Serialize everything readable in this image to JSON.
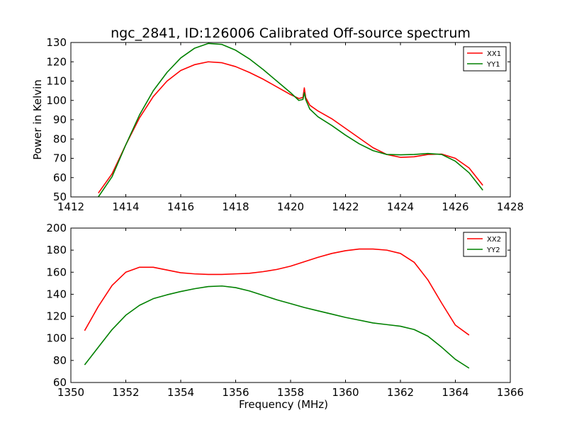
{
  "figure": {
    "title": "ngc_2841, ID:126006 Calibrated Off-source spectrum"
  },
  "chart_data": [
    {
      "type": "line",
      "ylabel": "Power in Kelvin",
      "xlabel": "",
      "xlim": [
        1412,
        1428
      ],
      "ylim": [
        50,
        130
      ],
      "xticks": [
        1412,
        1414,
        1416,
        1418,
        1420,
        1422,
        1424,
        1426,
        1428
      ],
      "yticks": [
        50,
        60,
        70,
        80,
        90,
        100,
        110,
        120,
        130
      ],
      "grid": false,
      "legend": "top-right",
      "series": [
        {
          "name": "XX1",
          "color": "#ff0000",
          "x": [
            1413.0,
            1413.5,
            1414.0,
            1414.5,
            1415.0,
            1415.5,
            1416.0,
            1416.5,
            1417.0,
            1417.5,
            1418.0,
            1418.5,
            1419.0,
            1419.5,
            1420.0,
            1420.3,
            1420.45,
            1420.5,
            1420.55,
            1420.7,
            1421.0,
            1421.5,
            1422.0,
            1422.5,
            1423.0,
            1423.5,
            1424.0,
            1424.5,
            1425.0,
            1425.5,
            1426.0,
            1426.5,
            1427.0
          ],
          "y": [
            52,
            62,
            77,
            91,
            102,
            110,
            115.5,
            118.5,
            120,
            119.5,
            117.5,
            114.5,
            111,
            107,
            103,
            101,
            101.5,
            106.5,
            101.5,
            97.5,
            94.5,
            90.5,
            85.5,
            80.5,
            75.5,
            72,
            70.5,
            70.8,
            72,
            72.2,
            70,
            65,
            56
          ]
        },
        {
          "name": "YY1",
          "color": "#008000",
          "x": [
            1413.0,
            1413.5,
            1414.0,
            1414.5,
            1415.0,
            1415.5,
            1416.0,
            1416.5,
            1417.0,
            1417.5,
            1418.0,
            1418.5,
            1419.0,
            1419.5,
            1420.0,
            1420.3,
            1420.45,
            1420.5,
            1420.55,
            1420.7,
            1421.0,
            1421.5,
            1422.0,
            1422.5,
            1423.0,
            1423.5,
            1424.0,
            1424.5,
            1425.0,
            1425.5,
            1426.0,
            1426.5,
            1427.0
          ],
          "y": [
            50,
            60.5,
            77,
            92.5,
            105,
            114.5,
            122,
            127,
            129.5,
            129,
            126,
            121.5,
            116,
            110,
            104,
            100,
            100.5,
            104,
            100.5,
            95.5,
            91.5,
            87,
            82,
            77.5,
            74,
            72,
            71.8,
            72,
            72.5,
            72,
            68.5,
            62.5,
            53.5
          ]
        }
      ]
    },
    {
      "type": "line",
      "ylabel": "",
      "xlabel": "Frequency (MHz)",
      "xlim": [
        1350,
        1366
      ],
      "ylim": [
        60,
        200
      ],
      "xticks": [
        1350,
        1352,
        1354,
        1356,
        1358,
        1360,
        1362,
        1364,
        1366
      ],
      "yticks": [
        60,
        80,
        100,
        120,
        140,
        160,
        180,
        200
      ],
      "grid": false,
      "legend": "top-right",
      "series": [
        {
          "name": "XX2",
          "color": "#ff0000",
          "x": [
            1350.5,
            1351.0,
            1351.5,
            1352.0,
            1352.5,
            1353.0,
            1353.5,
            1354.0,
            1354.5,
            1355.0,
            1355.5,
            1356.0,
            1356.5,
            1357.0,
            1357.5,
            1358.0,
            1358.5,
            1359.0,
            1359.5,
            1360.0,
            1360.5,
            1361.0,
            1361.5,
            1362.0,
            1362.5,
            1363.0,
            1363.5,
            1364.0,
            1364.5
          ],
          "y": [
            107,
            129,
            148,
            160,
            164.5,
            164.5,
            162,
            159.5,
            158.5,
            158,
            158,
            158.5,
            159,
            160.5,
            162.5,
            165.5,
            169.5,
            173.5,
            177,
            179.5,
            181,
            181,
            180,
            177,
            169,
            153,
            132,
            112,
            103
          ]
        },
        {
          "name": "YY2",
          "color": "#008000",
          "x": [
            1350.5,
            1351.0,
            1351.5,
            1352.0,
            1352.5,
            1353.0,
            1353.5,
            1354.0,
            1354.5,
            1355.0,
            1355.5,
            1356.0,
            1356.5,
            1357.0,
            1357.5,
            1358.0,
            1358.5,
            1359.0,
            1359.5,
            1360.0,
            1360.5,
            1361.0,
            1361.5,
            1362.0,
            1362.5,
            1363.0,
            1363.5,
            1364.0,
            1364.5
          ],
          "y": [
            76,
            92,
            108,
            121,
            130,
            136,
            139.5,
            142.5,
            145,
            147,
            147.5,
            146,
            143,
            139,
            135,
            131.5,
            128,
            125,
            122,
            119,
            116.5,
            114,
            112.5,
            111,
            108,
            102,
            92,
            81,
            73
          ]
        }
      ]
    }
  ]
}
